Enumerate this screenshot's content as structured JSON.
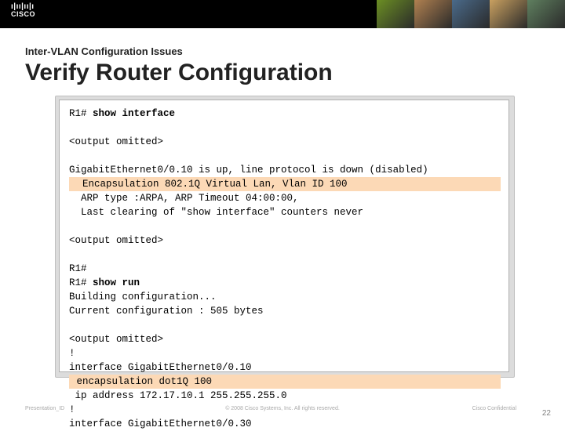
{
  "brand": {
    "name": "CISCO"
  },
  "header": {
    "subtitle": "Inter-VLAN Configuration Issues",
    "title": "Verify Router Configuration"
  },
  "photostrip_colors": [
    "#6b8e23",
    "#b08050",
    "#4a6a8a",
    "#c9a060",
    "#5f7f5f"
  ],
  "terminal": {
    "lines": [
      {
        "text": "R1# ",
        "bold_after": "show interface",
        "highlight": false
      },
      {
        "text": "",
        "highlight": false
      },
      {
        "text": "<output omitted>",
        "highlight": false
      },
      {
        "text": "",
        "highlight": false
      },
      {
        "text": "GigabitEthernet0/0.10 is up, line protocol is down (disabled)",
        "highlight": false
      },
      {
        "text": "  Encapsulation 802.1Q Virtual Lan, Vlan ID 100",
        "highlight": true
      },
      {
        "text": "  ARP type :ARPA, ARP Timeout 04:00:00,",
        "highlight": false
      },
      {
        "text": "  Last clearing of \"show interface\" counters never",
        "highlight": false
      },
      {
        "text": "",
        "highlight": false
      },
      {
        "text": "<output omitted>",
        "highlight": false
      },
      {
        "text": "",
        "highlight": false
      },
      {
        "text": "R1#",
        "highlight": false
      },
      {
        "text": "R1# ",
        "bold_after": "show run",
        "highlight": false
      },
      {
        "text": "Building configuration...",
        "highlight": false
      },
      {
        "text": "Current configuration : 505 bytes",
        "highlight": false
      },
      {
        "text": "",
        "highlight": false
      },
      {
        "text": "<output omitted>",
        "highlight": false
      },
      {
        "text": "!",
        "highlight": false
      },
      {
        "text": "interface GigabitEthernet0/0.10",
        "highlight": false
      },
      {
        "text": " encapsulation dot1Q 100",
        "highlight": true
      },
      {
        "text": " ip address 172.17.10.1 255.255.255.0",
        "highlight": false
      },
      {
        "text": "!",
        "highlight": false
      },
      {
        "text": "interface GigabitEthernet0/0.30",
        "highlight": false
      }
    ]
  },
  "footer": {
    "left": "Presentation_ID",
    "center": "© 2008 Cisco Systems, Inc. All rights reserved.",
    "confidential": "Cisco Confidential",
    "page": "22"
  },
  "colors": {
    "highlight_bg": "#fcd9b6",
    "topbar_bg": "#000000",
    "text": "#222222",
    "footer_text": "#a9a9a9"
  }
}
